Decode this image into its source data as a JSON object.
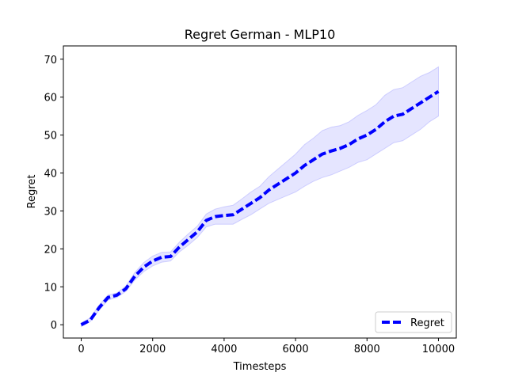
{
  "chart_data": {
    "type": "line",
    "title": "Regret German - MLP10",
    "xlabel": "Timesteps",
    "ylabel": "Regret",
    "xlim": [
      -500,
      10500
    ],
    "ylim": [
      -3.5,
      73.5
    ],
    "xticks": [
      0,
      2000,
      4000,
      6000,
      8000,
      10000
    ],
    "yticks": [
      0,
      10,
      20,
      30,
      40,
      50,
      60,
      70
    ],
    "grid": false,
    "legend_position": "lower-right",
    "series": [
      {
        "name": "Regret",
        "color": "#0000ff",
        "line_style": "dashed",
        "x": [
          0,
          250,
          500,
          750,
          1000,
          1250,
          1500,
          1750,
          2000,
          2250,
          2500,
          2750,
          3000,
          3250,
          3500,
          3750,
          4000,
          4250,
          4500,
          4750,
          5000,
          5250,
          5500,
          5750,
          6000,
          6250,
          6500,
          6750,
          7000,
          7250,
          7500,
          7750,
          8000,
          8250,
          8500,
          8750,
          9000,
          9250,
          9500,
          9750,
          10000
        ],
        "y": [
          0,
          1.2,
          4.5,
          7.2,
          7.8,
          9.5,
          12.8,
          15.2,
          16.8,
          17.8,
          18.0,
          20.5,
          22.5,
          24.5,
          27.5,
          28.5,
          28.8,
          29.0,
          30.5,
          32.0,
          33.5,
          35.5,
          37.0,
          38.5,
          40.0,
          42.0,
          43.5,
          45.0,
          45.8,
          46.5,
          47.5,
          49.0,
          50.0,
          51.5,
          53.5,
          55.0,
          55.5,
          57.0,
          58.5,
          60.0,
          61.5
        ],
        "lower": [
          -0.5,
          0.8,
          3.8,
          6.5,
          7.2,
          8.8,
          11.8,
          14.0,
          15.5,
          16.5,
          16.8,
          19.2,
          21.0,
          23.0,
          25.8,
          26.5,
          26.5,
          26.5,
          27.8,
          29.0,
          30.5,
          32.0,
          33.0,
          34.0,
          35.0,
          36.5,
          37.8,
          38.8,
          39.5,
          40.5,
          41.5,
          42.8,
          43.5,
          45.0,
          46.5,
          48.0,
          48.5,
          50.0,
          51.5,
          53.5,
          55.0
        ],
        "upper": [
          0.5,
          1.8,
          5.2,
          7.9,
          8.4,
          10.2,
          13.8,
          16.4,
          18.1,
          19.1,
          19.2,
          21.8,
          24.0,
          26.0,
          29.2,
          30.5,
          31.1,
          31.5,
          33.2,
          35.0,
          36.5,
          39.0,
          41.0,
          43.0,
          45.0,
          47.5,
          49.2,
          51.2,
          52.1,
          52.5,
          53.5,
          55.2,
          56.5,
          58.0,
          60.5,
          62.0,
          62.5,
          64.0,
          65.5,
          66.5,
          68.0
        ]
      }
    ]
  }
}
